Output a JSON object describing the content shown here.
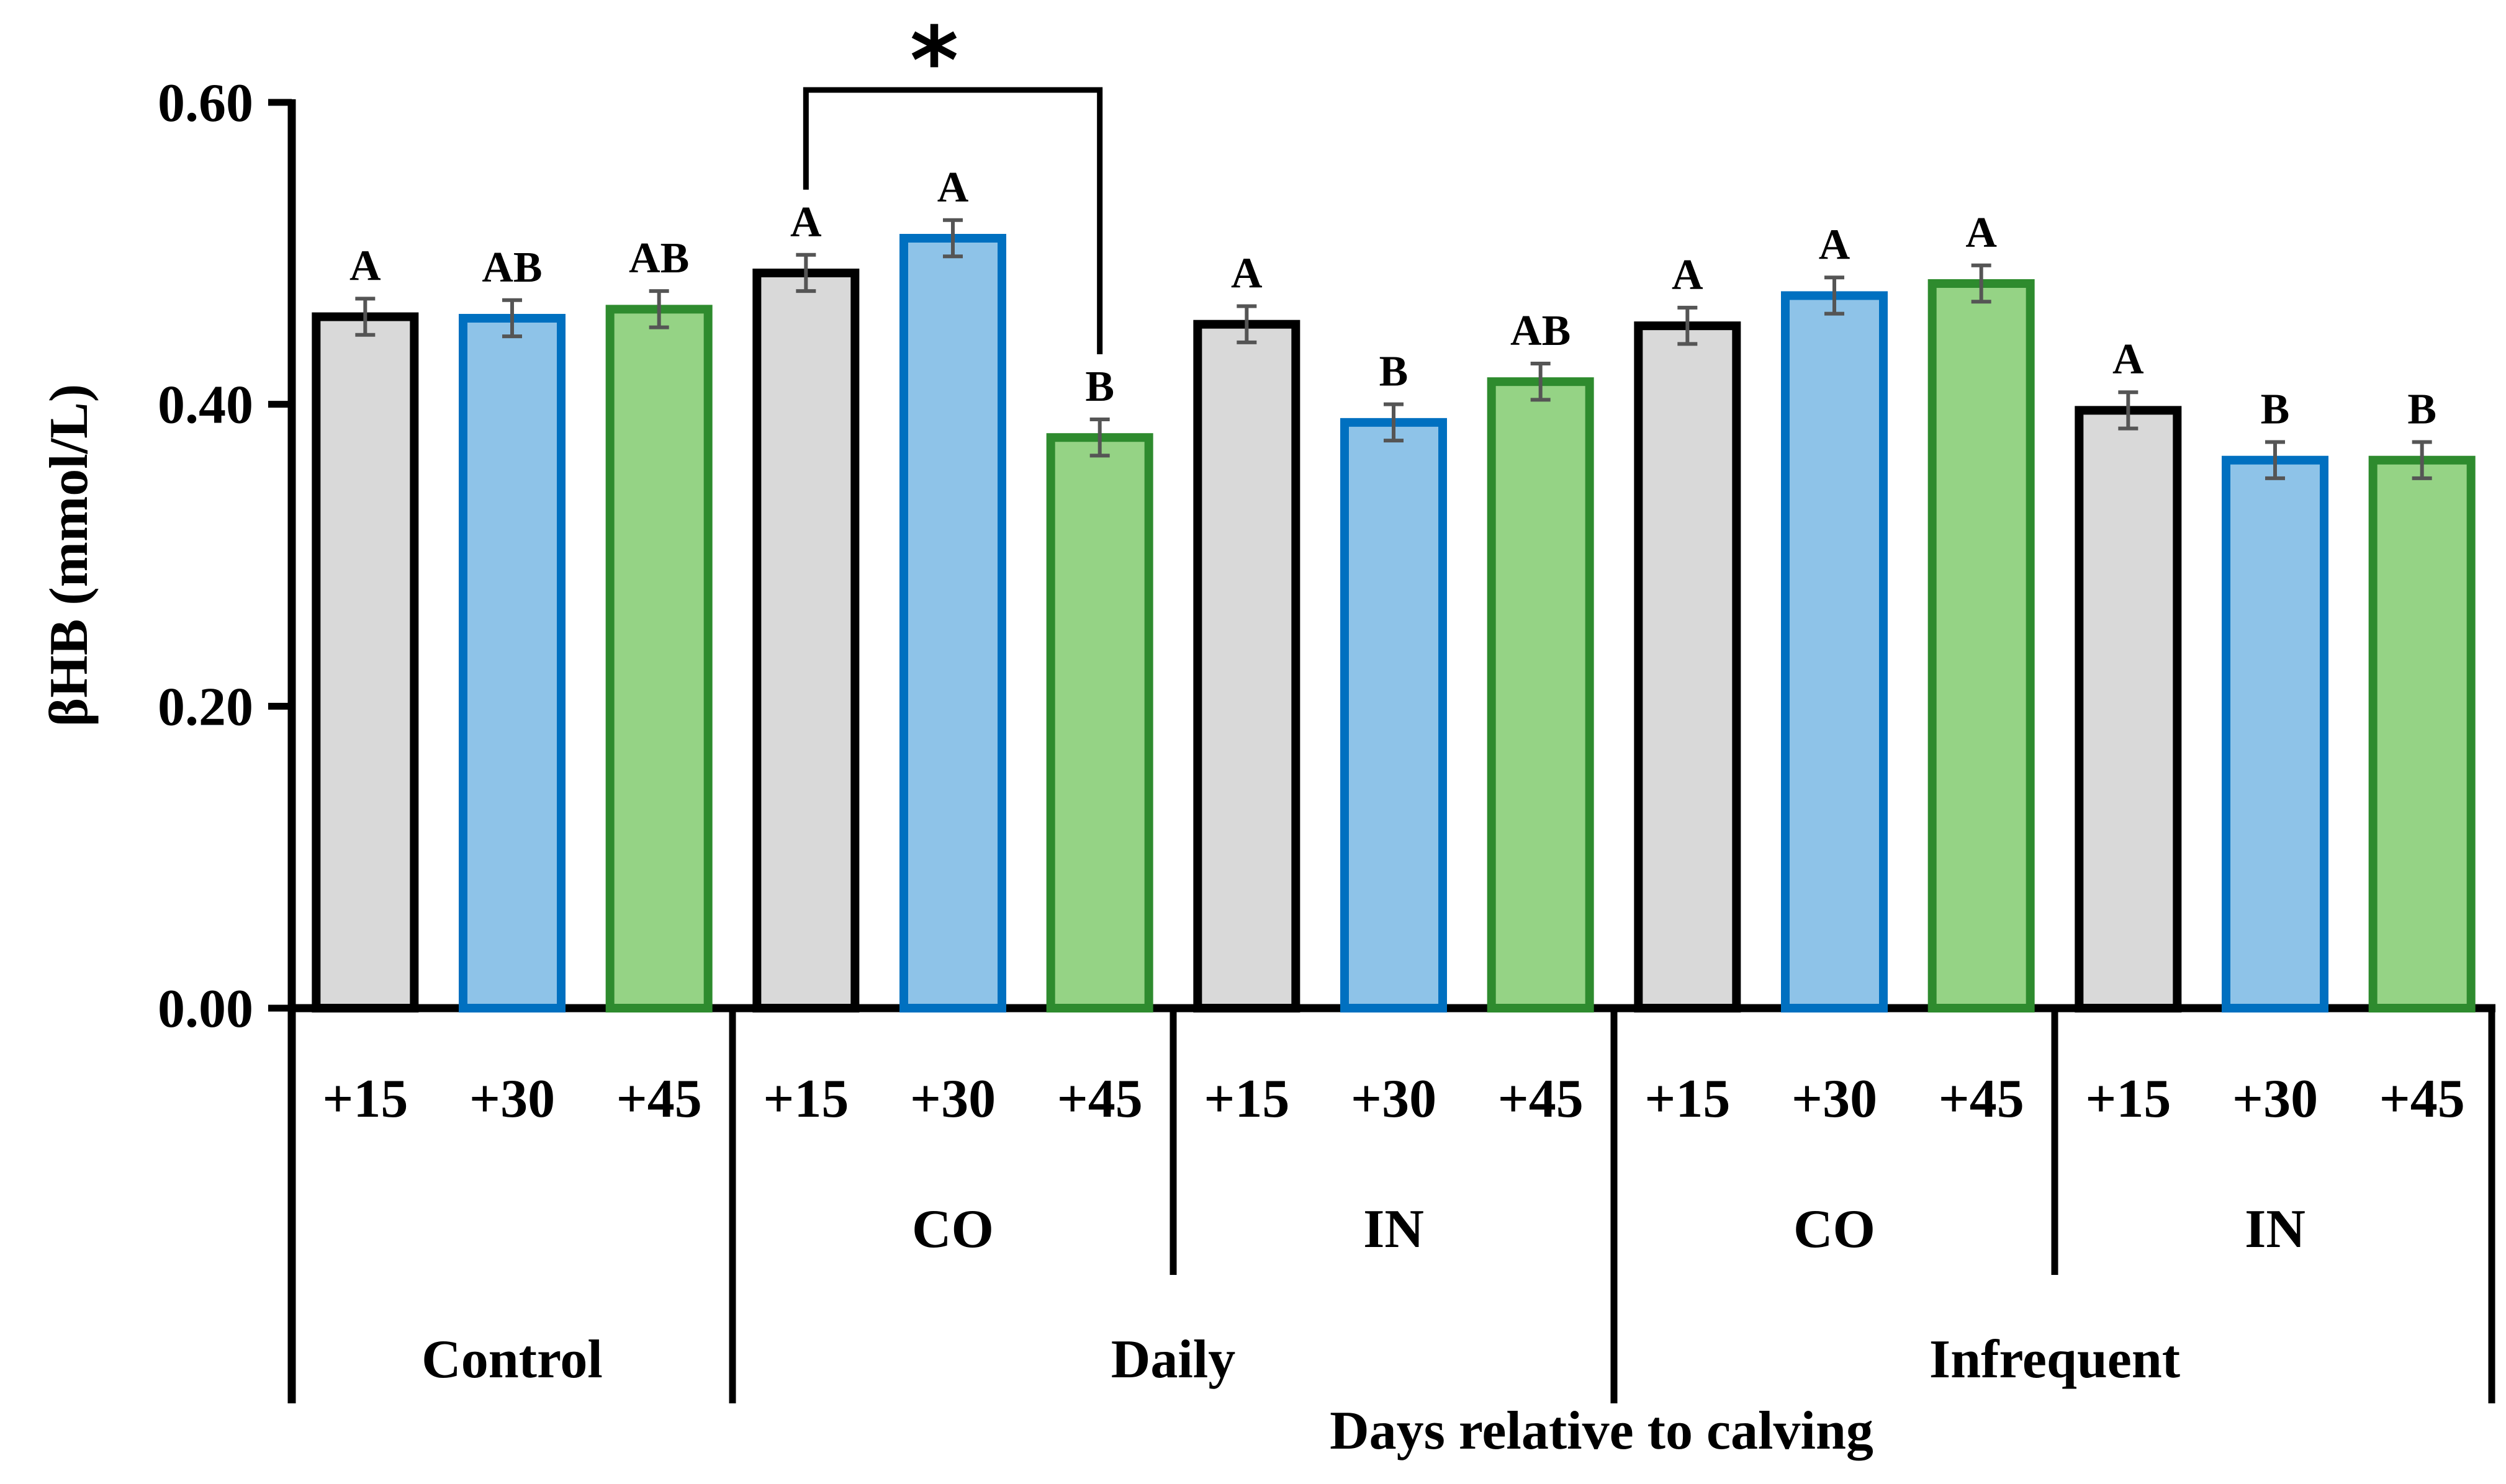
{
  "chart_data": {
    "type": "bar",
    "ylabel": "βHB (mmol/L)",
    "xlabel": "Days relative to calving",
    "ylim": [
      0,
      0.6
    ],
    "yticks": [
      "0.00",
      "0.20",
      "0.40",
      "0.60"
    ],
    "styles": {
      "+15": {
        "fill": "#d9d9d9",
        "stroke": "#000000"
      },
      "+30": {
        "fill": "#8ec3e8",
        "stroke": "#0070c0"
      },
      "+45": {
        "fill": "#95d385",
        "stroke": "#2e8b2e"
      }
    },
    "error_color": "#555555",
    "bars": [
      {
        "day": "+15",
        "value": 0.458,
        "error": 0.012,
        "letter": "A"
      },
      {
        "day": "+30",
        "value": 0.457,
        "error": 0.012,
        "letter": "AB"
      },
      {
        "day": "+45",
        "value": 0.463,
        "error": 0.012,
        "letter": "AB"
      },
      {
        "day": "+15",
        "value": 0.487,
        "error": 0.012,
        "letter": "A"
      },
      {
        "day": "+30",
        "value": 0.51,
        "error": 0.012,
        "letter": "A"
      },
      {
        "day": "+45",
        "value": 0.378,
        "error": 0.012,
        "letter": "B"
      },
      {
        "day": "+15",
        "value": 0.453,
        "error": 0.012,
        "letter": "A"
      },
      {
        "day": "+30",
        "value": 0.388,
        "error": 0.012,
        "letter": "B"
      },
      {
        "day": "+45",
        "value": 0.415,
        "error": 0.012,
        "letter": "AB"
      },
      {
        "day": "+15",
        "value": 0.452,
        "error": 0.012,
        "letter": "A"
      },
      {
        "day": "+30",
        "value": 0.472,
        "error": 0.012,
        "letter": "A"
      },
      {
        "day": "+45",
        "value": 0.48,
        "error": 0.012,
        "letter": "A"
      },
      {
        "day": "+15",
        "value": 0.396,
        "error": 0.012,
        "letter": "A"
      },
      {
        "day": "+30",
        "value": 0.363,
        "error": 0.012,
        "letter": "B"
      },
      {
        "day": "+45",
        "value": 0.363,
        "error": 0.012,
        "letter": "B"
      }
    ],
    "subgroups": [
      "",
      "CO",
      "IN",
      "CO",
      "IN"
    ],
    "groups": [
      "Control",
      "Daily",
      "Infrequent"
    ],
    "significance": {
      "marker": "*",
      "from_bar": 3,
      "to_bar": 5
    }
  }
}
